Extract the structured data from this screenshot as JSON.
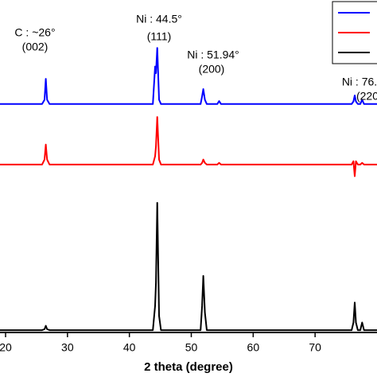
{
  "chart_data": {
    "type": "line",
    "x_label": "2 theta (degree)",
    "annotations": [
      "C : ~26°",
      "(002)",
      "Ni : 44.5°",
      "(111)",
      "Ni : 51.94°",
      "(200)",
      "Ni : 76.",
      "(220"
    ],
    "x": [
      19.1,
      25.9,
      26.3,
      26.5,
      26.7,
      27.1,
      43.8,
      44.15,
      44.3,
      44.5,
      44.8,
      45.1,
      51.5,
      51.75,
      51.94,
      52.2,
      52.5,
      54.2,
      54.5,
      54.8,
      75.9,
      76.2,
      76.4,
      76.6,
      76.9,
      77.3,
      77.6,
      77.9,
      80
    ],
    "series": [
      {
        "color": "#0000ff",
        "values": [
          68.7,
          68.7,
          70,
          76.3,
          70,
          68.7,
          68.7,
          80,
          78,
          85.6,
          70,
          68.7,
          68.7,
          71,
          73.2,
          70,
          68.7,
          68.7,
          69.6,
          68.7,
          68.7,
          69.5,
          71.3,
          69.5,
          68.7,
          68.7,
          70,
          68.7,
          68.7
        ]
      },
      {
        "color": "#ff0000",
        "values": [
          50.5,
          50.5,
          52,
          56.5,
          52,
          50.5,
          50.5,
          53,
          56,
          64.8,
          52,
          50.5,
          50.5,
          51,
          52,
          51,
          50.5,
          50.5,
          51,
          50.5,
          50.5,
          51.5,
          47,
          51.5,
          50.5,
          50.5,
          51,
          50.5,
          50.5
        ]
      },
      {
        "color": "#000000",
        "values": [
          0.7,
          0.7,
          1,
          2,
          1,
          0.7,
          0.7,
          8,
          15,
          39,
          5,
          0.7,
          0.7,
          8,
          17,
          6,
          0.7,
          0.7,
          0.7,
          0.7,
          0.7,
          3,
          9,
          3,
          0.7,
          0.7,
          3,
          0.7,
          0.7
        ]
      }
    ],
    "xlim": [
      19.1,
      80
    ],
    "ylim": [
      0,
      100
    ],
    "xticks": [
      20,
      30,
      40,
      50,
      60,
      70
    ]
  }
}
